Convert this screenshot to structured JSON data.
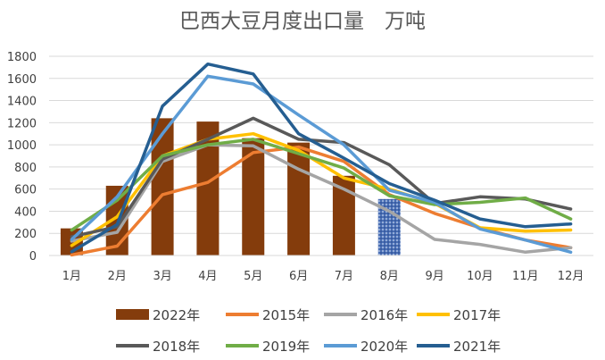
{
  "chart_data": {
    "type": "bar+line",
    "title": "巴西大豆月度出口量　万吨",
    "categories": [
      "1月",
      "2月",
      "3月",
      "4月",
      "5月",
      "6月",
      "7月",
      "8月",
      "9月",
      "10月",
      "11月",
      "12月"
    ],
    "ylim": [
      0,
      1800
    ],
    "yticks": [
      0,
      200,
      400,
      600,
      800,
      1000,
      1200,
      1400,
      1600,
      1800
    ],
    "grid": true,
    "legend_position": "bottom",
    "bar_series": {
      "name": "2022年",
      "color": "#843c0c",
      "highlight_color": "#4a6fb5",
      "highlight_index": 7,
      "values": [
        245,
        630,
        1240,
        1210,
        1060,
        1020,
        720,
        510
      ]
    },
    "line_series": [
      {
        "name": "2015年",
        "color": "#ed7d31",
        "values": [
          5,
          85,
          550,
          660,
          930,
          980,
          850,
          550,
          380,
          250,
          140,
          70
        ]
      },
      {
        "name": "2016年",
        "color": "#a5a5a5",
        "values": [
          130,
          210,
          850,
          1000,
          990,
          780,
          600,
          400,
          145,
          100,
          30,
          70
        ]
      },
      {
        "name": "2017年",
        "color": "#ffc000",
        "values": [
          90,
          350,
          900,
          1050,
          1100,
          950,
          700,
          600,
          470,
          250,
          220,
          230
        ]
      },
      {
        "name": "2018年",
        "color": "#595959",
        "values": [
          170,
          260,
          870,
          1050,
          1240,
          1050,
          1020,
          820,
          470,
          530,
          510,
          420
        ]
      },
      {
        "name": "2019年",
        "color": "#70ad47",
        "values": [
          230,
          500,
          900,
          1000,
          1050,
          920,
          790,
          540,
          460,
          480,
          520,
          330
        ]
      },
      {
        "name": "2020年",
        "color": "#5b9bd5",
        "values": [
          145,
          530,
          1100,
          1620,
          1550,
          1270,
          1000,
          590,
          480,
          240,
          140,
          30
        ]
      },
      {
        "name": "2021年",
        "color": "#255e91",
        "values": [
          35,
          280,
          1350,
          1730,
          1640,
          1100,
          880,
          650,
          500,
          330,
          260,
          285
        ]
      }
    ]
  }
}
